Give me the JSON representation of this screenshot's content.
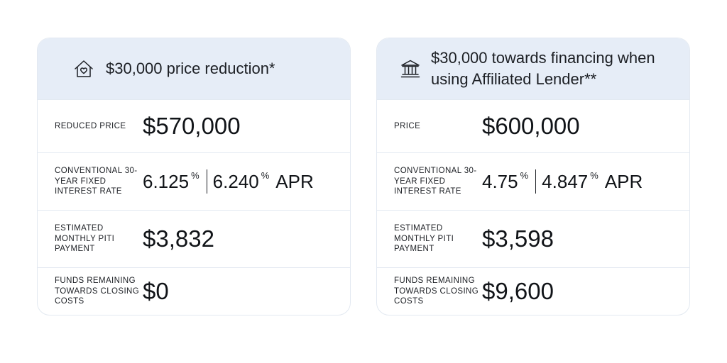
{
  "left_card": {
    "header_icon": "house-heart-icon",
    "title": "$30,000 price reduction*",
    "rows": [
      {
        "label": "REDUCED PRICE",
        "value": "$570,000"
      },
      {
        "label": "CONVENTIONAL 30-YEAR FIXED INTEREST RATE",
        "rate": "6.125",
        "rate_pct": "%",
        "apr_rate": "6.240",
        "apr_pct": "%",
        "apr_label": "APR"
      },
      {
        "label": "ESTIMATED MONTHLY PITI PAYMENT",
        "value": "$3,832"
      },
      {
        "label": "FUNDS REMAINING TOWARDS CLOSING COSTS",
        "value": "$0"
      }
    ]
  },
  "right_card": {
    "header_icon": "bank-icon",
    "title": "$30,000 towards financing when using Affiliated Lender**",
    "rows": [
      {
        "label": "PRICE",
        "value": "$600,000"
      },
      {
        "label": "CONVENTIONAL 30-YEAR FIXED INTEREST RATE",
        "rate": "4.75",
        "rate_pct": "%",
        "apr_rate": "4.847",
        "apr_pct": "%",
        "apr_label": "APR"
      },
      {
        "label": "ESTIMATED MONTHLY PITI PAYMENT",
        "value": "$3,598"
      },
      {
        "label": "FUNDS REMAINING TOWARDS CLOSING COSTS",
        "value": "$9,600"
      }
    ]
  }
}
